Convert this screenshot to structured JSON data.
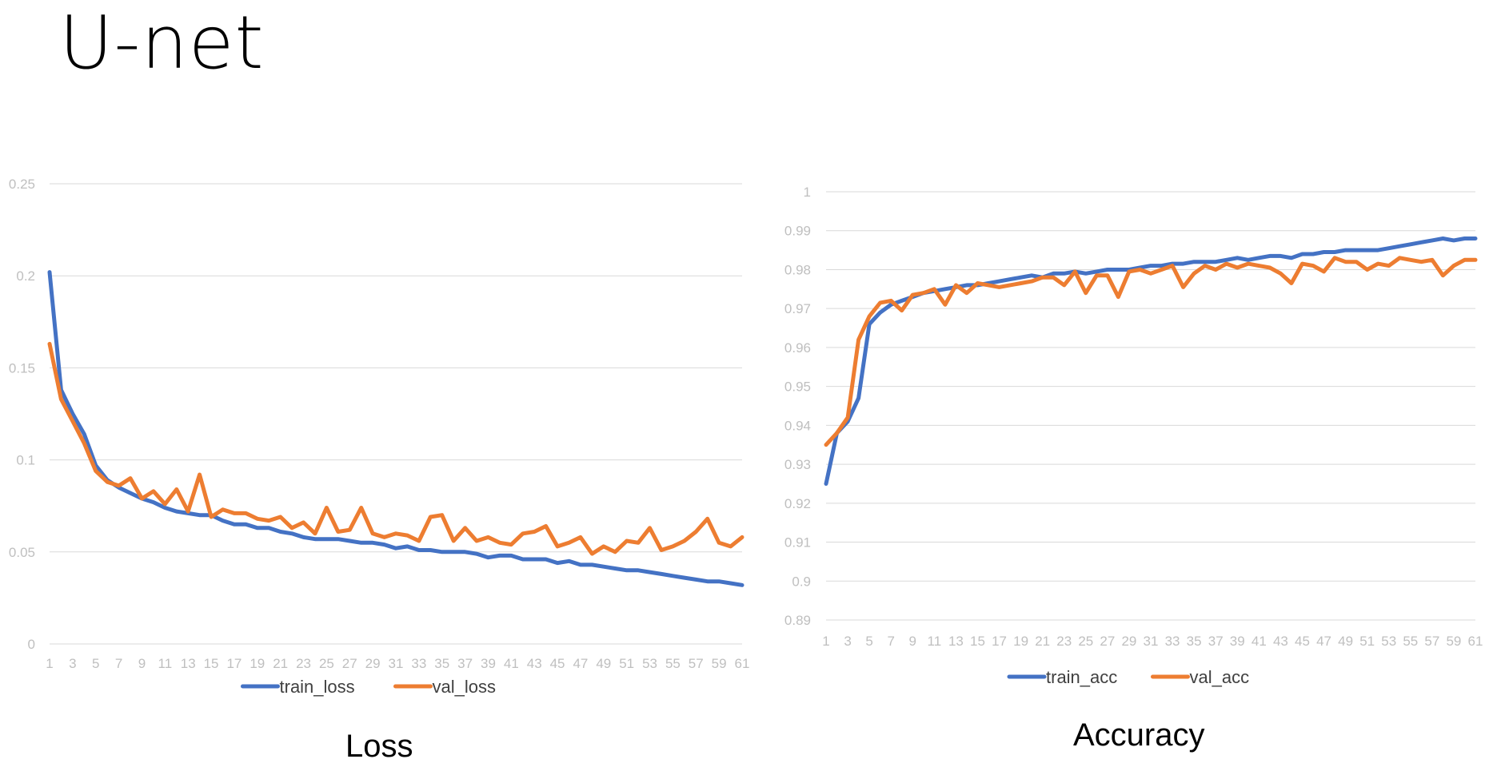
{
  "page": {
    "title": "U-net"
  },
  "captions": {
    "loss": "Loss",
    "accuracy": "Accuracy"
  },
  "colors": {
    "train": "#4472C4",
    "val": "#ED7D31",
    "grid": "#d9d9d9",
    "tick": "#bfbfbf"
  },
  "chart_data": [
    {
      "id": "loss",
      "type": "line",
      "title": "",
      "xlabel": "",
      "ylabel": "",
      "x": [
        1,
        2,
        3,
        4,
        5,
        6,
        7,
        8,
        9,
        10,
        11,
        12,
        13,
        14,
        15,
        16,
        17,
        18,
        19,
        20,
        21,
        22,
        23,
        24,
        25,
        26,
        27,
        28,
        29,
        30,
        31,
        32,
        33,
        34,
        35,
        36,
        37,
        38,
        39,
        40,
        41,
        42,
        43,
        44,
        45,
        46,
        47,
        48,
        49,
        50,
        51,
        52,
        53,
        54,
        55,
        56,
        57,
        58,
        59,
        60,
        61
      ],
      "xticks": [
        1,
        3,
        5,
        7,
        9,
        11,
        13,
        15,
        17,
        19,
        21,
        23,
        25,
        27,
        29,
        31,
        33,
        35,
        37,
        39,
        41,
        43,
        45,
        47,
        49,
        51,
        53,
        55,
        57,
        59,
        61
      ],
      "yticks": [
        "0",
        "0.05",
        "0.1",
        "0.15",
        "0.2",
        "0.25"
      ],
      "ylim": [
        0,
        0.25
      ],
      "grid": true,
      "legend_position": "bottom",
      "series": [
        {
          "name": "train_loss",
          "color": "#4472C4",
          "values": [
            0.202,
            0.138,
            0.125,
            0.114,
            0.097,
            0.089,
            0.085,
            0.082,
            0.079,
            0.077,
            0.074,
            0.072,
            0.071,
            0.07,
            0.07,
            0.067,
            0.065,
            0.065,
            0.063,
            0.063,
            0.061,
            0.06,
            0.058,
            0.057,
            0.057,
            0.057,
            0.056,
            0.055,
            0.055,
            0.054,
            0.052,
            0.053,
            0.051,
            0.051,
            0.05,
            0.05,
            0.05,
            0.049,
            0.047,
            0.048,
            0.048,
            0.046,
            0.046,
            0.046,
            0.044,
            0.045,
            0.043,
            0.043,
            0.042,
            0.041,
            0.04,
            0.04,
            0.039,
            0.038,
            0.037,
            0.036,
            0.035,
            0.034,
            0.034,
            0.033,
            0.032
          ]
        },
        {
          "name": "val_loss",
          "color": "#ED7D31",
          "values": [
            0.163,
            0.133,
            0.121,
            0.109,
            0.094,
            0.088,
            0.086,
            0.09,
            0.079,
            0.083,
            0.076,
            0.084,
            0.072,
            0.092,
            0.069,
            0.073,
            0.071,
            0.071,
            0.068,
            0.067,
            0.069,
            0.063,
            0.066,
            0.06,
            0.074,
            0.061,
            0.062,
            0.074,
            0.06,
            0.058,
            0.06,
            0.059,
            0.056,
            0.069,
            0.07,
            0.056,
            0.063,
            0.056,
            0.058,
            0.055,
            0.054,
            0.06,
            0.061,
            0.064,
            0.053,
            0.055,
            0.058,
            0.049,
            0.053,
            0.05,
            0.056,
            0.055,
            0.063,
            0.051,
            0.053,
            0.056,
            0.061,
            0.068,
            0.055,
            0.053,
            0.058
          ]
        }
      ]
    },
    {
      "id": "accuracy",
      "type": "line",
      "title": "",
      "xlabel": "",
      "ylabel": "",
      "x": [
        1,
        2,
        3,
        4,
        5,
        6,
        7,
        8,
        9,
        10,
        11,
        12,
        13,
        14,
        15,
        16,
        17,
        18,
        19,
        20,
        21,
        22,
        23,
        24,
        25,
        26,
        27,
        28,
        29,
        30,
        31,
        32,
        33,
        34,
        35,
        36,
        37,
        38,
        39,
        40,
        41,
        42,
        43,
        44,
        45,
        46,
        47,
        48,
        49,
        50,
        51,
        52,
        53,
        54,
        55,
        56,
        57,
        58,
        59,
        60,
        61
      ],
      "xticks": [
        1,
        3,
        5,
        7,
        9,
        11,
        13,
        15,
        17,
        19,
        21,
        23,
        25,
        27,
        29,
        31,
        33,
        35,
        37,
        39,
        41,
        43,
        45,
        47,
        49,
        51,
        53,
        55,
        57,
        59,
        61
      ],
      "yticks": [
        "0.89",
        "0.9",
        "0.91",
        "0.92",
        "0.93",
        "0.94",
        "0.95",
        "0.96",
        "0.97",
        "0.98",
        "0.99",
        "1"
      ],
      "ylim": [
        0.89,
        1
      ],
      "grid": true,
      "legend_position": "bottom",
      "series": [
        {
          "name": "train_acc",
          "color": "#4472C4",
          "values": [
            0.925,
            0.938,
            0.941,
            0.947,
            0.966,
            0.969,
            0.971,
            0.972,
            0.973,
            0.974,
            0.9745,
            0.975,
            0.9755,
            0.976,
            0.976,
            0.9765,
            0.977,
            0.9775,
            0.978,
            0.9785,
            0.978,
            0.979,
            0.979,
            0.9795,
            0.979,
            0.9795,
            0.98,
            0.98,
            0.98,
            0.9805,
            0.981,
            0.981,
            0.9815,
            0.9815,
            0.982,
            0.982,
            0.982,
            0.9825,
            0.983,
            0.9825,
            0.983,
            0.9835,
            0.9835,
            0.983,
            0.984,
            0.984,
            0.9845,
            0.9845,
            0.985,
            0.985,
            0.985,
            0.985,
            0.9855,
            0.986,
            0.9865,
            0.987,
            0.9875,
            0.988,
            0.9875,
            0.988,
            0.988
          ]
        },
        {
          "name": "val_acc",
          "color": "#ED7D31",
          "values": [
            0.935,
            0.938,
            0.942,
            0.962,
            0.968,
            0.9715,
            0.972,
            0.9695,
            0.9735,
            0.974,
            0.975,
            0.971,
            0.976,
            0.974,
            0.9765,
            0.976,
            0.9755,
            0.976,
            0.9765,
            0.977,
            0.978,
            0.978,
            0.976,
            0.9795,
            0.974,
            0.9785,
            0.9785,
            0.973,
            0.9795,
            0.98,
            0.979,
            0.98,
            0.981,
            0.9755,
            0.979,
            0.981,
            0.98,
            0.9815,
            0.9805,
            0.9815,
            0.981,
            0.9805,
            0.979,
            0.9765,
            0.9815,
            0.981,
            0.9795,
            0.983,
            0.982,
            0.982,
            0.98,
            0.9815,
            0.981,
            0.983,
            0.9825,
            0.982,
            0.9825,
            0.9785,
            0.981,
            0.9825,
            0.9825
          ]
        }
      ]
    }
  ]
}
